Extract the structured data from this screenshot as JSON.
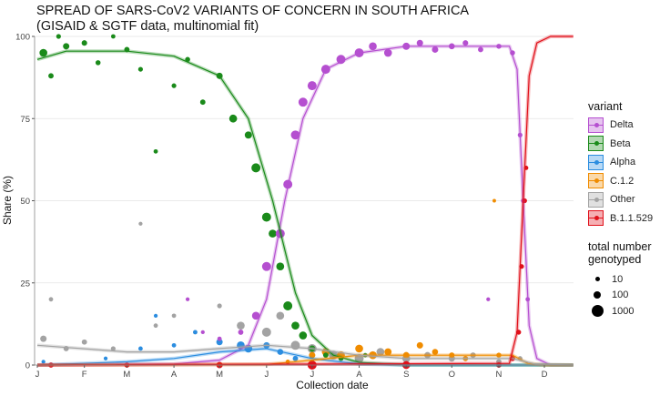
{
  "chart_data": {
    "type": "scatter",
    "title": "SPREAD OF SARS-CoV2 VARIANTS OF CONCERN IN SOUTH AFRICA",
    "subtitle": "(GISAID & SGTF data, multinomial fit)",
    "xlabel": "Collection date",
    "ylabel": "Share (%)",
    "xlim": [
      "2021-01-01",
      "2021-12-20"
    ],
    "ylim": [
      0,
      100
    ],
    "x_ticks": [
      {
        "date": "2021-01-01",
        "label": "J"
      },
      {
        "date": "2021-02-01",
        "label": "F"
      },
      {
        "date": "2021-03-01",
        "label": "M"
      },
      {
        "date": "2021-04-01",
        "label": "A"
      },
      {
        "date": "2021-05-01",
        "label": "M"
      },
      {
        "date": "2021-06-01",
        "label": "J"
      },
      {
        "date": "2021-07-01",
        "label": "J"
      },
      {
        "date": "2021-08-01",
        "label": "A"
      },
      {
        "date": "2021-09-01",
        "label": "S"
      },
      {
        "date": "2021-10-01",
        "label": "O"
      },
      {
        "date": "2021-11-01",
        "label": "N"
      },
      {
        "date": "2021-12-01",
        "label": "D"
      }
    ],
    "y_ticks": [
      0,
      25,
      50,
      75,
      100
    ],
    "grid": true,
    "legend_position": "right",
    "legend_title": "variant",
    "size_legend": {
      "title_line1": "total number",
      "title_line2": "genotyped",
      "values": [
        "10",
        "100",
        "1000"
      ]
    },
    "series": [
      {
        "name": "Delta",
        "color": "#b54fd0",
        "fit": [
          [
            "2021-01-01",
            0
          ],
          [
            "2021-04-01",
            0.3
          ],
          [
            "2021-05-01",
            1.5
          ],
          [
            "2021-05-20",
            6
          ],
          [
            "2021-06-01",
            20
          ],
          [
            "2021-06-13",
            50
          ],
          [
            "2021-06-25",
            75
          ],
          [
            "2021-07-10",
            90
          ],
          [
            "2021-08-01",
            95
          ],
          [
            "2021-09-01",
            97
          ],
          [
            "2021-11-08",
            97
          ],
          [
            "2021-11-13",
            90
          ],
          [
            "2021-11-17",
            50
          ],
          [
            "2021-11-21",
            12
          ],
          [
            "2021-11-26",
            2
          ],
          [
            "2021-12-05",
            0
          ],
          [
            "2021-12-20",
            0
          ]
        ],
        "points": [
          [
            "2021-04-10",
            20,
            10
          ],
          [
            "2021-04-20",
            10,
            10
          ],
          [
            "2021-05-01",
            8,
            20
          ],
          [
            "2021-05-15",
            10,
            50
          ],
          [
            "2021-05-25",
            15,
            200
          ],
          [
            "2021-06-01",
            30,
            300
          ],
          [
            "2021-06-10",
            40,
            300
          ],
          [
            "2021-06-15",
            55,
            300
          ],
          [
            "2021-06-20",
            70,
            300
          ],
          [
            "2021-06-25",
            80,
            300
          ],
          [
            "2021-07-01",
            85,
            300
          ],
          [
            "2021-07-10",
            90,
            300
          ],
          [
            "2021-07-20",
            93,
            300
          ],
          [
            "2021-08-01",
            95,
            300
          ],
          [
            "2021-08-10",
            97,
            200
          ],
          [
            "2021-08-20",
            95,
            200
          ],
          [
            "2021-09-01",
            97,
            150
          ],
          [
            "2021-09-10",
            98,
            100
          ],
          [
            "2021-09-20",
            96,
            100
          ],
          [
            "2021-10-01",
            97,
            80
          ],
          [
            "2021-10-10",
            98,
            60
          ],
          [
            "2021-10-20",
            96,
            50
          ],
          [
            "2021-11-01",
            97,
            40
          ],
          [
            "2021-11-10",
            95,
            40
          ],
          [
            "2021-11-15",
            70,
            30
          ],
          [
            "2021-11-17",
            50,
            20
          ],
          [
            "2021-11-20",
            20,
            20
          ],
          [
            "2021-10-25",
            20,
            10
          ]
        ]
      },
      {
        "name": "Beta",
        "color": "#1a8a1a",
        "fit": [
          [
            "2021-01-01",
            93
          ],
          [
            "2021-01-20",
            95.5
          ],
          [
            "2021-03-01",
            95.5
          ],
          [
            "2021-04-01",
            94
          ],
          [
            "2021-05-01",
            88
          ],
          [
            "2021-05-20",
            75
          ],
          [
            "2021-06-05",
            50
          ],
          [
            "2021-06-20",
            22
          ],
          [
            "2021-07-01",
            9
          ],
          [
            "2021-07-15",
            3
          ],
          [
            "2021-08-01",
            0.8
          ],
          [
            "2021-09-01",
            0
          ],
          [
            "2021-12-20",
            0
          ]
        ],
        "points": [
          [
            "2021-01-05",
            95,
            200
          ],
          [
            "2021-01-10",
            88,
            50
          ],
          [
            "2021-01-15",
            100,
            30
          ],
          [
            "2021-01-20",
            97,
            100
          ],
          [
            "2021-02-01",
            98,
            60
          ],
          [
            "2021-02-10",
            92,
            40
          ],
          [
            "2021-02-20",
            100,
            20
          ],
          [
            "2021-03-01",
            96,
            50
          ],
          [
            "2021-03-10",
            90,
            30
          ],
          [
            "2021-03-20",
            65,
            20
          ],
          [
            "2021-04-01",
            85,
            30
          ],
          [
            "2021-04-10",
            93,
            40
          ],
          [
            "2021-04-20",
            80,
            50
          ],
          [
            "2021-05-01",
            88,
            100
          ],
          [
            "2021-05-10",
            75,
            200
          ],
          [
            "2021-05-20",
            70,
            150
          ],
          [
            "2021-05-25",
            60,
            300
          ],
          [
            "2021-06-01",
            45,
            300
          ],
          [
            "2021-06-05",
            40,
            200
          ],
          [
            "2021-06-10",
            30,
            200
          ],
          [
            "2021-06-15",
            18,
            300
          ],
          [
            "2021-06-20",
            12,
            200
          ],
          [
            "2021-06-25",
            9,
            200
          ],
          [
            "2021-07-01",
            5,
            100
          ],
          [
            "2021-07-10",
            3,
            50
          ],
          [
            "2021-07-20",
            2,
            40
          ],
          [
            "2021-08-05",
            3,
            20
          ]
        ]
      },
      {
        "name": "Alpha",
        "color": "#2b8de0",
        "fit": [
          [
            "2021-01-01",
            0
          ],
          [
            "2021-03-01",
            1
          ],
          [
            "2021-04-01",
            2
          ],
          [
            "2021-05-01",
            4
          ],
          [
            "2021-06-01",
            5
          ],
          [
            "2021-07-01",
            2
          ],
          [
            "2021-08-01",
            0.3
          ],
          [
            "2021-09-01",
            0
          ],
          [
            "2021-12-20",
            0
          ]
        ],
        "points": [
          [
            "2021-01-05",
            1,
            10
          ],
          [
            "2021-02-15",
            2,
            10
          ],
          [
            "2021-03-10",
            5,
            20
          ],
          [
            "2021-03-20",
            15,
            10
          ],
          [
            "2021-04-01",
            6,
            20
          ],
          [
            "2021-04-15",
            10,
            20
          ],
          [
            "2021-05-01",
            7,
            100
          ],
          [
            "2021-05-15",
            6,
            200
          ],
          [
            "2021-05-20",
            5,
            200
          ],
          [
            "2021-06-01",
            6,
            100
          ],
          [
            "2021-06-10",
            4,
            80
          ],
          [
            "2021-06-20",
            2,
            50
          ],
          [
            "2021-07-01",
            1,
            20
          ]
        ]
      },
      {
        "name": "C.1.2",
        "color": "#f08c00",
        "fit": [
          [
            "2021-01-01",
            0
          ],
          [
            "2021-06-01",
            0.2
          ],
          [
            "2021-07-01",
            1.5
          ],
          [
            "2021-08-01",
            3
          ],
          [
            "2021-09-01",
            3
          ],
          [
            "2021-11-10",
            3
          ],
          [
            "2021-11-20",
            0.5
          ],
          [
            "2021-12-01",
            0
          ],
          [
            "2021-12-20",
            0
          ]
        ],
        "points": [
          [
            "2021-06-15",
            1,
            20
          ],
          [
            "2021-07-01",
            3,
            100
          ],
          [
            "2021-07-10",
            4,
            200
          ],
          [
            "2021-07-20",
            3,
            200
          ],
          [
            "2021-08-01",
            5,
            200
          ],
          [
            "2021-08-10",
            3,
            200
          ],
          [
            "2021-08-20",
            4,
            150
          ],
          [
            "2021-09-01",
            3,
            100
          ],
          [
            "2021-09-10",
            6,
            100
          ],
          [
            "2021-09-20",
            4,
            80
          ],
          [
            "2021-10-01",
            3,
            60
          ],
          [
            "2021-10-10",
            2,
            50
          ],
          [
            "2021-11-01",
            3,
            40
          ],
          [
            "2021-11-10",
            2,
            40
          ],
          [
            "2021-10-29",
            50,
            5
          ]
        ]
      },
      {
        "name": "Other",
        "color": "#a3a3a3",
        "fit": [
          [
            "2021-01-01",
            6
          ],
          [
            "2021-03-01",
            4
          ],
          [
            "2021-04-01",
            4
          ],
          [
            "2021-05-01",
            5
          ],
          [
            "2021-06-01",
            6
          ],
          [
            "2021-07-01",
            5
          ],
          [
            "2021-08-01",
            3
          ],
          [
            "2021-09-01",
            2
          ],
          [
            "2021-11-10",
            2
          ],
          [
            "2021-11-25",
            0.3
          ],
          [
            "2021-12-20",
            0
          ]
        ],
        "points": [
          [
            "2021-01-05",
            8,
            100
          ],
          [
            "2021-01-10",
            20,
            20
          ],
          [
            "2021-01-20",
            5,
            50
          ],
          [
            "2021-02-01",
            7,
            50
          ],
          [
            "2021-02-20",
            5,
            30
          ],
          [
            "2021-03-10",
            43,
            10
          ],
          [
            "2021-03-20",
            12,
            20
          ],
          [
            "2021-04-01",
            15,
            20
          ],
          [
            "2021-04-15",
            10,
            20
          ],
          [
            "2021-05-01",
            18,
            30
          ],
          [
            "2021-05-15",
            12,
            200
          ],
          [
            "2021-06-01",
            10,
            300
          ],
          [
            "2021-06-10",
            15,
            200
          ],
          [
            "2021-06-20",
            6,
            300
          ],
          [
            "2021-07-01",
            5,
            300
          ],
          [
            "2021-07-15",
            3,
            300
          ],
          [
            "2021-08-01",
            2,
            300
          ],
          [
            "2021-08-15",
            4,
            200
          ],
          [
            "2021-09-01",
            2,
            200
          ],
          [
            "2021-09-15",
            3,
            100
          ],
          [
            "2021-10-01",
            2,
            100
          ],
          [
            "2021-10-15",
            3,
            60
          ],
          [
            "2021-11-01",
            1,
            50
          ],
          [
            "2021-11-15",
            2,
            30
          ]
        ]
      },
      {
        "name": "B.1.1.529",
        "color": "#e0101a",
        "fit": [
          [
            "2021-01-01",
            0
          ],
          [
            "2021-11-08",
            0.5
          ],
          [
            "2021-11-13",
            10
          ],
          [
            "2021-11-17",
            50
          ],
          [
            "2021-11-21",
            88
          ],
          [
            "2021-11-26",
            98
          ],
          [
            "2021-12-05",
            100
          ],
          [
            "2021-12-20",
            100
          ]
        ],
        "points": [
          [
            "2021-01-10",
            0,
            50
          ],
          [
            "2021-03-01",
            0,
            50
          ],
          [
            "2021-05-01",
            0,
            100
          ],
          [
            "2021-07-01",
            0,
            300
          ],
          [
            "2021-09-01",
            0,
            200
          ],
          [
            "2021-11-01",
            0,
            50
          ],
          [
            "2021-11-10",
            2,
            50
          ],
          [
            "2021-11-14",
            10,
            40
          ],
          [
            "2021-11-16",
            30,
            30
          ],
          [
            "2021-11-18",
            50,
            30
          ],
          [
            "2021-11-19",
            60,
            20
          ]
        ]
      }
    ]
  }
}
